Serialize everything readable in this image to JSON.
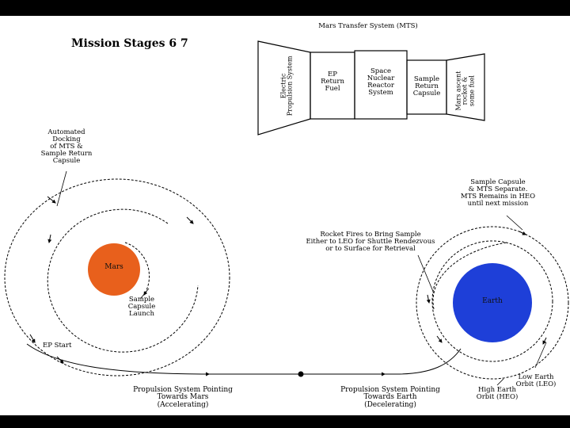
{
  "title": "Mission Stages 6 7",
  "mts": {
    "heading": "Mars Transfer System (MTS)",
    "electric": [
      "Electric",
      "Propulsion System"
    ],
    "ep_fuel": [
      "EP",
      "Return",
      "Fuel"
    ],
    "reactor": [
      "Space",
      "Nuclear",
      "Reactor",
      "System"
    ],
    "capsule": [
      "Sample",
      "Return",
      "Capsule"
    ],
    "ascent": [
      "Mars ascent",
      "rocket &",
      "some fuel"
    ]
  },
  "planets": {
    "mars": "Mars",
    "earth": "Earth"
  },
  "labels": {
    "docking": [
      "Automated",
      "Docking",
      "of MTS &",
      "Sample Return",
      "Capsule"
    ],
    "launch": [
      "Sample",
      "Capsule",
      "Launch"
    ],
    "ep_start": "EP Start",
    "separate": [
      "Sample Capsule",
      "& MTS Separate.",
      "MTS Remains in HEO",
      "until next mission"
    ],
    "rocket": [
      "Rocket Fires to Bring Sample",
      "Either to LEO for Shuttle Rendezvous",
      "or to Surface for Retrieval"
    ],
    "leo": [
      "Low Earth",
      "Orbit (LEO)"
    ],
    "heo": [
      "High Earth",
      "Orbit (HEO)"
    ],
    "towards_mars": [
      "Propulsion System Pointing",
      "Towards Mars",
      "(Accelerating)"
    ],
    "towards_earth": [
      "Propulsion System Pointing",
      "Towards Earth",
      "(Decelerating)"
    ]
  },
  "colors": {
    "mars": "#e8601c",
    "earth": "#1e3fd8",
    "background": "#ffffff",
    "frame": "#000000"
  }
}
